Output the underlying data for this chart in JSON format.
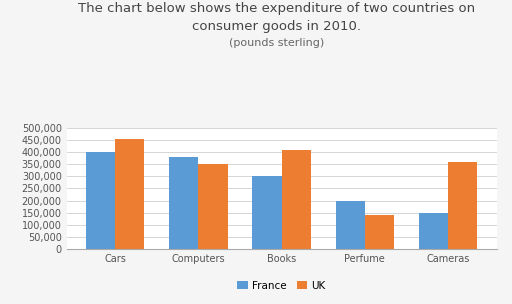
{
  "title_line1": "The chart below shows the expenditure of two countries on",
  "title_line2": "consumer goods in 2010.",
  "subtitle": "(pounds sterling)",
  "categories": [
    "Cars",
    "Computers",
    "Books",
    "Perfume",
    "Cameras"
  ],
  "france_values": [
    400000,
    380000,
    300000,
    200000,
    150000
  ],
  "uk_values": [
    455000,
    350000,
    408000,
    140000,
    360000
  ],
  "france_color": "#5B9BD5",
  "uk_color": "#ED7D31",
  "ylim": [
    0,
    500000
  ],
  "yticks": [
    0,
    50000,
    100000,
    150000,
    200000,
    250000,
    300000,
    350000,
    400000,
    450000,
    500000
  ],
  "bar_width": 0.35,
  "legend_labels": [
    "France",
    "UK"
  ],
  "background_color": "#f5f5f5",
  "plot_bg_color": "#ffffff",
  "title_fontsize": 9.5,
  "subtitle_fontsize": 8,
  "tick_fontsize": 7,
  "legend_fontsize": 7.5
}
